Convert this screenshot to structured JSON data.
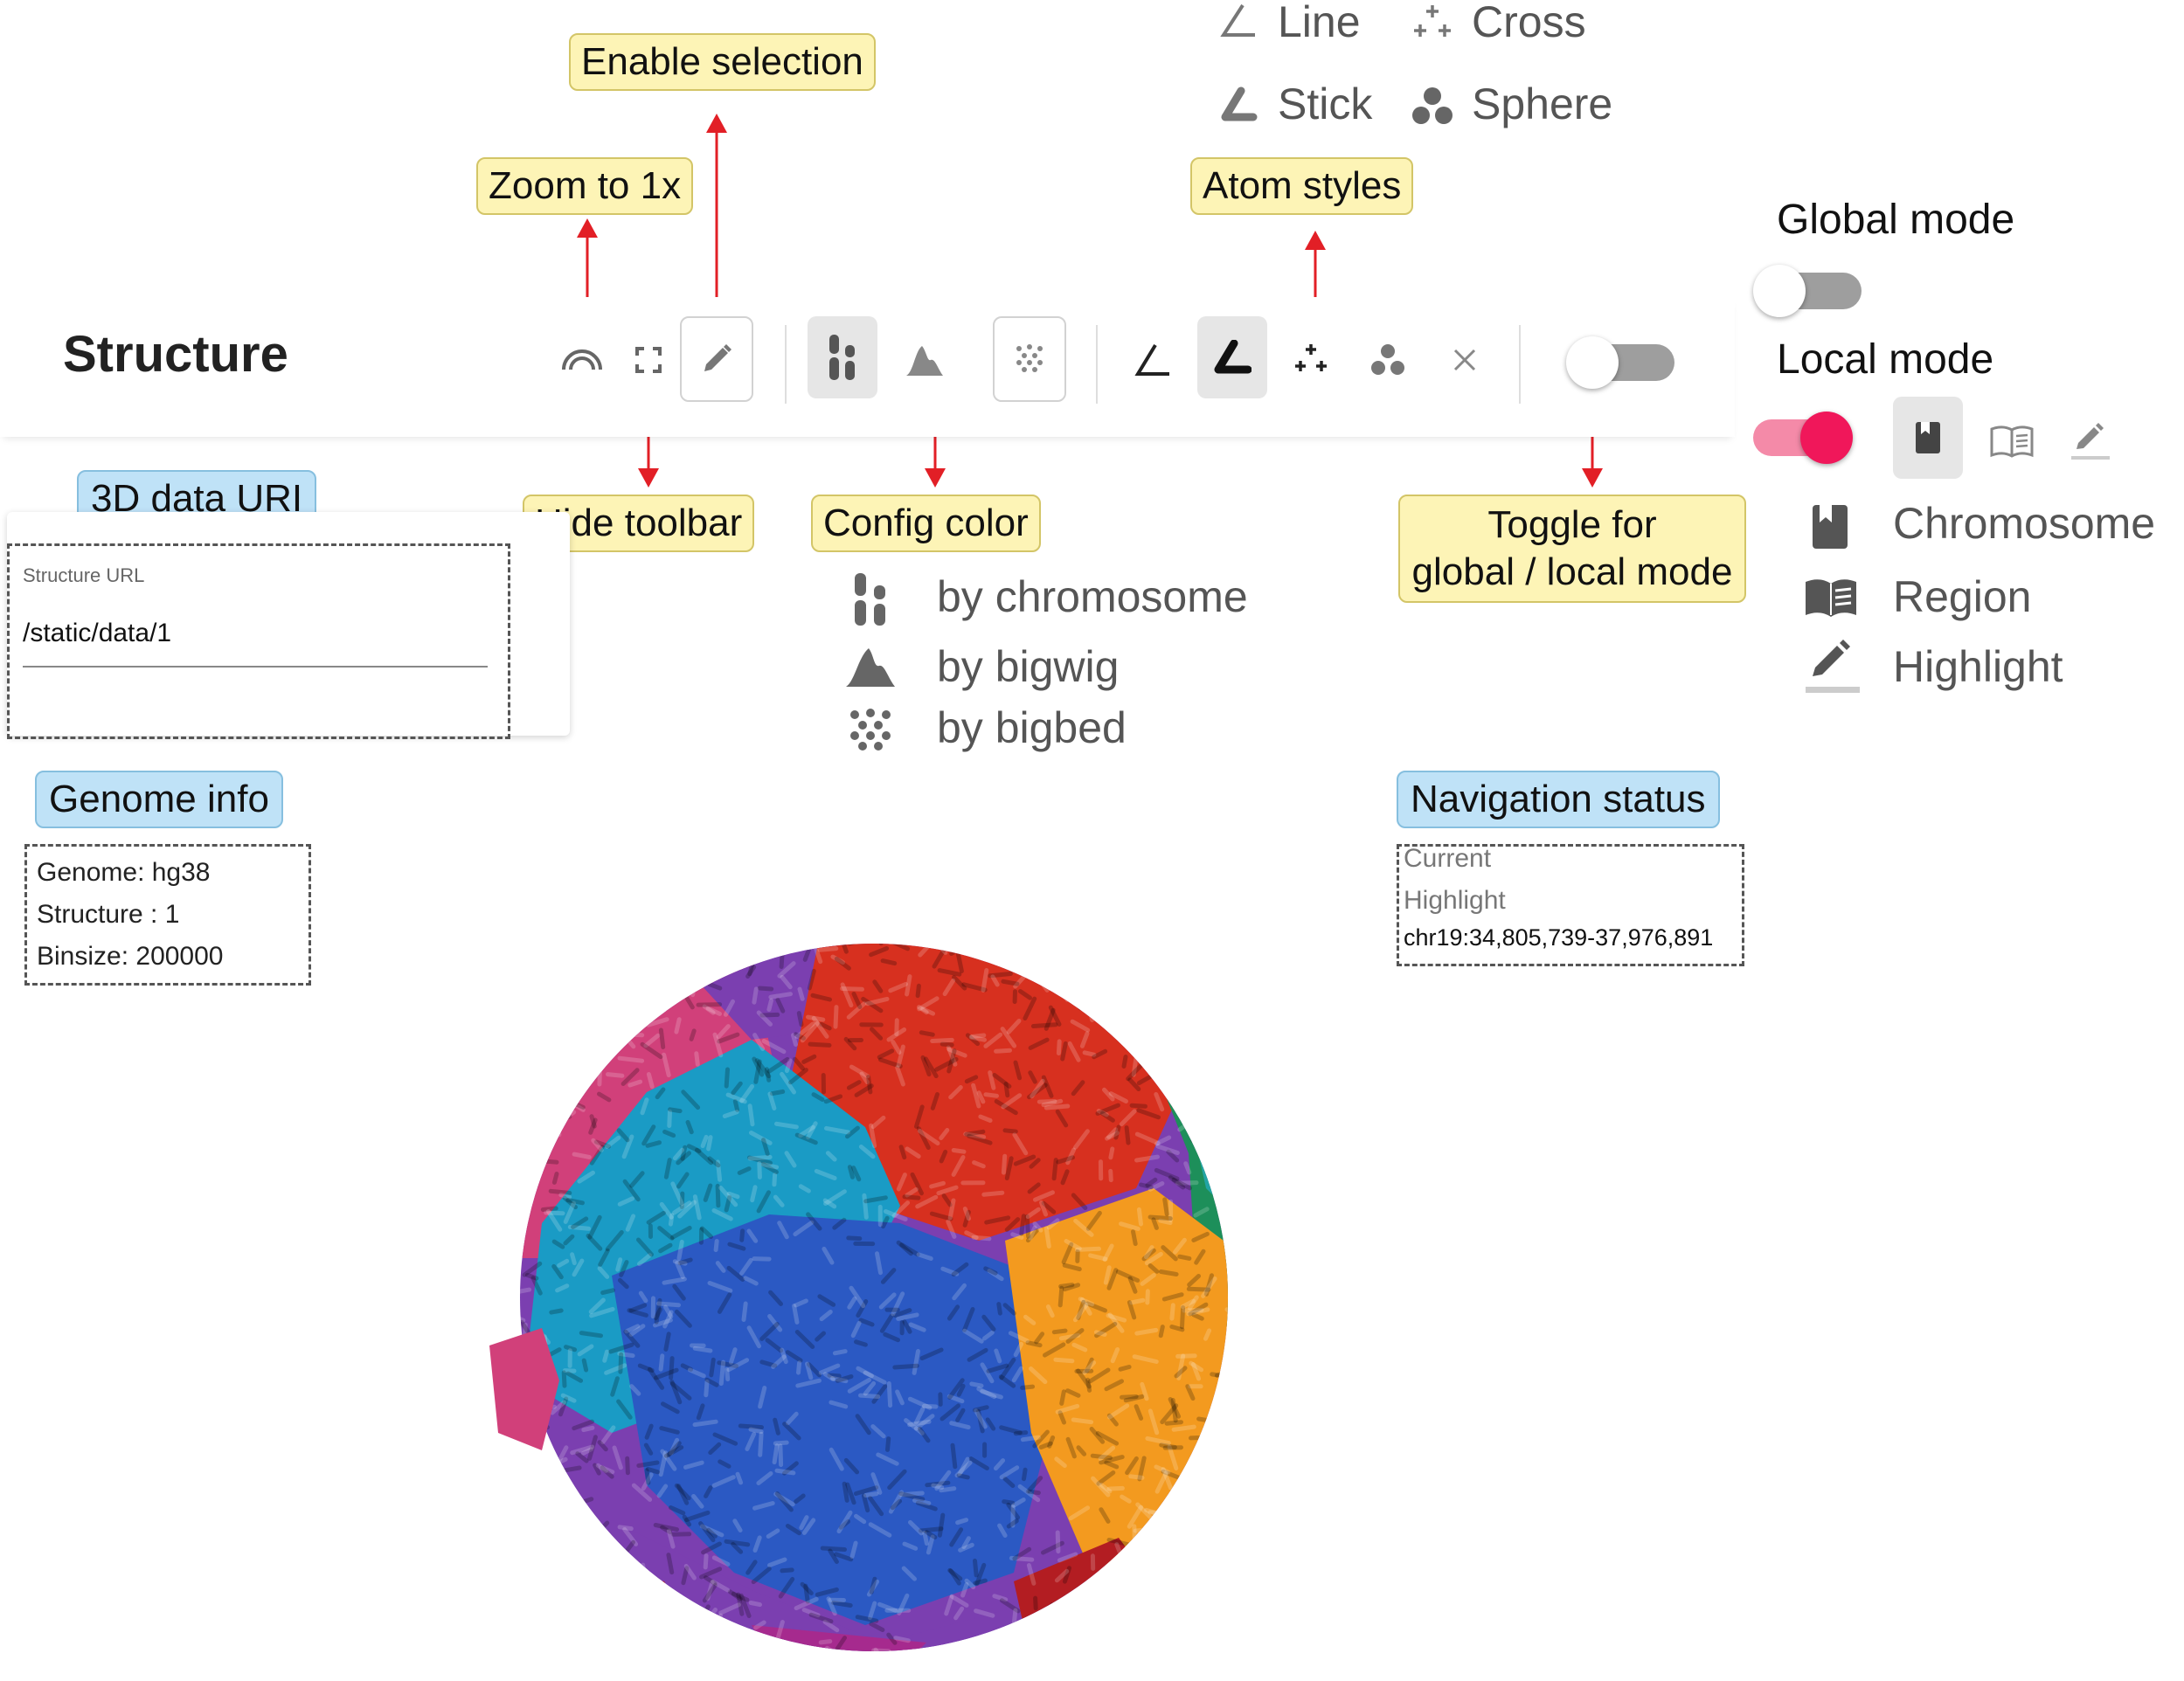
{
  "toolbar": {
    "title": "Structure",
    "zoom_icon": "rainbow-arc-icon",
    "fullscreen_icon": "fullscreen-icon",
    "selection_icon": "pencil-icon",
    "color_icons": [
      "chromosome-bars-icon",
      "bigwig-peak-icon",
      "bigbed-dots-icon"
    ],
    "atom_icons": [
      "line-angle-icon",
      "stick-angle-icon",
      "cross-icon",
      "sphere-icon",
      "close-icon"
    ],
    "mode_toggle_on": false
  },
  "annotations": {
    "enable_selection": "Enable selection",
    "zoom_to_1x": "Zoom to 1x",
    "atom_styles": "Atom styles",
    "hide_toolbar": "Hide toolbar",
    "config_color": "Config color",
    "toggle_mode": "Toggle for\nglobal / local mode",
    "data_uri": "3D data URI",
    "genome_info": "Genome info",
    "navigation_status": "Navigation status"
  },
  "atom_styles_legend": [
    {
      "label": "Line",
      "icon": "line-angle-icon"
    },
    {
      "label": "Cross",
      "icon": "cross-icon"
    },
    {
      "label": "Stick",
      "icon": "stick-angle-icon"
    },
    {
      "label": "Sphere",
      "icon": "sphere-icon"
    }
  ],
  "color_legend": [
    {
      "label": "by chromosome",
      "icon": "chromosome-bars-icon"
    },
    {
      "label": "by bigwig",
      "icon": "bigwig-peak-icon"
    },
    {
      "label": "by bigbed",
      "icon": "bigbed-dots-icon"
    }
  ],
  "modes": {
    "global_label": "Global mode",
    "global_on": false,
    "local_label": "Local mode",
    "local_on": true,
    "local_icons": [
      "chromosome-book-icon",
      "region-book-icon",
      "highlight-pencil-icon"
    ],
    "legend": [
      {
        "label": "Chromosome",
        "icon": "chromosome-book-icon"
      },
      {
        "label": "Region",
        "icon": "region-book-icon"
      },
      {
        "label": "Highlight",
        "icon": "highlight-pencil-icon"
      }
    ]
  },
  "structure_url": {
    "label": "Structure URL",
    "value": "/static/data/1"
  },
  "genome_info": {
    "genome": "Genome: hg38",
    "structure": "Structure : 1",
    "binsize": "Binsize: 200000"
  },
  "navigation": {
    "current": "Current",
    "highlight": "Highlight",
    "region": "chr19:34,805,739-37,976,891"
  },
  "colors": {
    "annotation_yellow": "#fdf4b6",
    "annotation_blue": "#bfe2f7",
    "arrow_red": "#e21f26",
    "toggle_pink": "#f0175a",
    "chromosome_palette": [
      "#d7301f",
      "#2b59c3",
      "#1a9bc5",
      "#f39a1f",
      "#d1407a",
      "#7b3fb0",
      "#1d8f5a",
      "#b31d22",
      "#a62a8e",
      "#22a4a4"
    ]
  }
}
